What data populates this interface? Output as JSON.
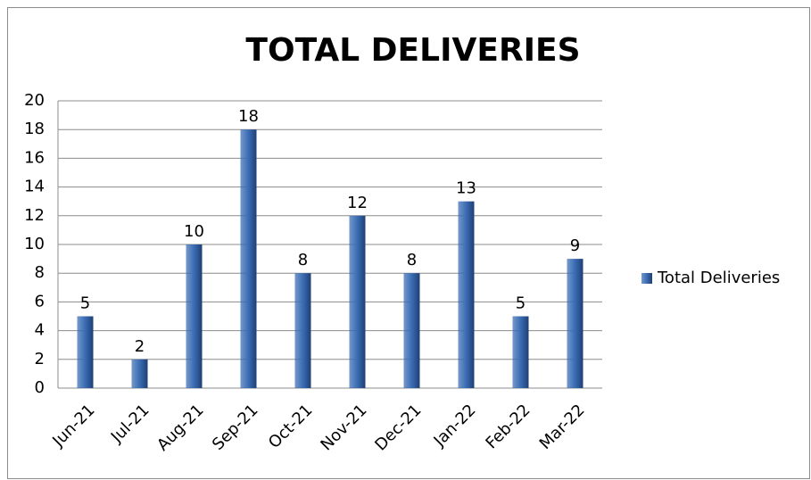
{
  "chart_data": {
    "type": "bar",
    "title": "TOTAL DELIVERIES",
    "categories": [
      "Jun-21",
      "Jul-21",
      "Aug-21",
      "Sep-21",
      "Oct-21",
      "Nov-21",
      "Dec-21",
      "Jan-22",
      "Feb-22",
      "Mar-22"
    ],
    "series": [
      {
        "name": "Total Deliveries",
        "color": "#3a6cb4",
        "values": [
          5,
          2,
          10,
          18,
          8,
          12,
          8,
          13,
          5,
          9
        ]
      }
    ],
    "ylim": [
      0,
      20
    ],
    "yticks": [
      0,
      2,
      4,
      6,
      8,
      10,
      12,
      14,
      16,
      18,
      20
    ],
    "grid": true,
    "legend": "right"
  }
}
